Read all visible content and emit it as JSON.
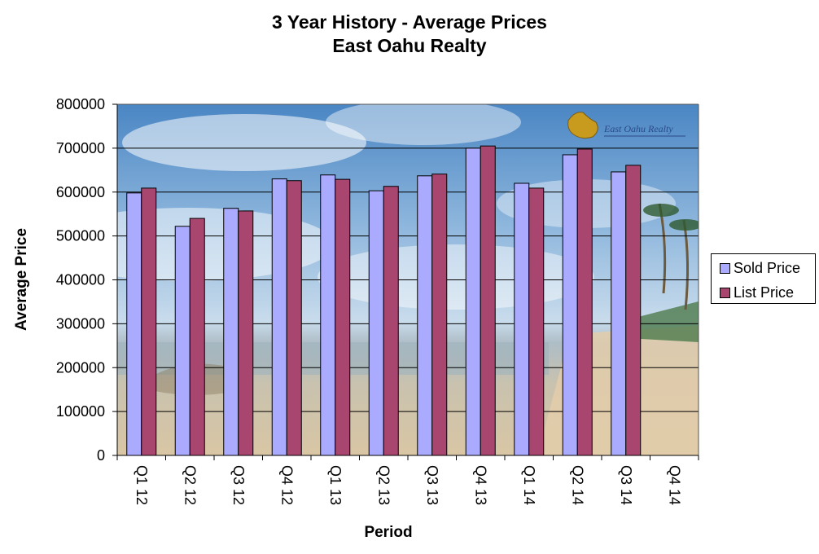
{
  "chart_data": {
    "type": "bar",
    "title": "3 Year History - Average Prices",
    "subtitle": "East Oahu Realty",
    "xlabel": "Period",
    "ylabel": "Average Price",
    "categories": [
      "Q1 12",
      "Q2 12",
      "Q3 12",
      "Q4 12",
      "Q1 13",
      "Q2 13",
      "Q3 13",
      "Q4 13",
      "Q1 14",
      "Q2 14",
      "Q3 14",
      "Q4 14"
    ],
    "series": [
      {
        "name": "Sold Price",
        "color": "#aaaaff",
        "values": [
          598000,
          522000,
          563000,
          630000,
          639000,
          603000,
          637000,
          700000,
          620000,
          685000,
          646000,
          null
        ]
      },
      {
        "name": "List Price",
        "color": "#a8466f",
        "values": [
          609000,
          540000,
          557000,
          626000,
          629000,
          613000,
          641000,
          705000,
          609000,
          698000,
          661000,
          null
        ]
      }
    ],
    "ylim": [
      0,
      800000
    ],
    "yticks": [
      "0",
      "100000",
      "200000",
      "300000",
      "400000",
      "500000",
      "600000",
      "700000",
      "800000"
    ],
    "grid": true,
    "legend_position": "right",
    "watermark_text": "East Oahu Realty"
  }
}
